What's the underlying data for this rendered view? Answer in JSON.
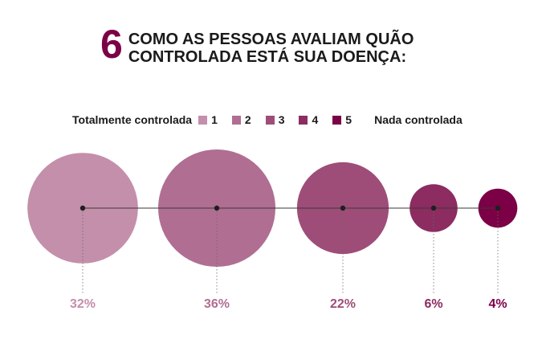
{
  "header": {
    "number": "6",
    "title_line1": "COMO AS PESSOAS AVALIAM QUÃO",
    "title_line2": "CONTROLADA ESTÁ SUA DOENÇA:"
  },
  "legend": {
    "left_label": "Totalmente controlada",
    "right_label": "Nada controlada",
    "items": [
      {
        "label": "1",
        "color": "#c48fab"
      },
      {
        "label": "2",
        "color": "#b06e93"
      },
      {
        "label": "3",
        "color": "#9e4d78"
      },
      {
        "label": "4",
        "color": "#8c2c61"
      },
      {
        "label": "5",
        "color": "#7b0046"
      }
    ]
  },
  "chart_data": {
    "type": "bubble",
    "categories": [
      "1",
      "2",
      "3",
      "4",
      "5"
    ],
    "values": [
      32,
      36,
      22,
      6,
      4
    ],
    "labels": [
      "32%",
      "36%",
      "22%",
      "6%",
      "4%"
    ],
    "colors": [
      "#c48fab",
      "#b06e93",
      "#9e4d78",
      "#8c2c61",
      "#7b0046"
    ],
    "legend_position": "top"
  }
}
